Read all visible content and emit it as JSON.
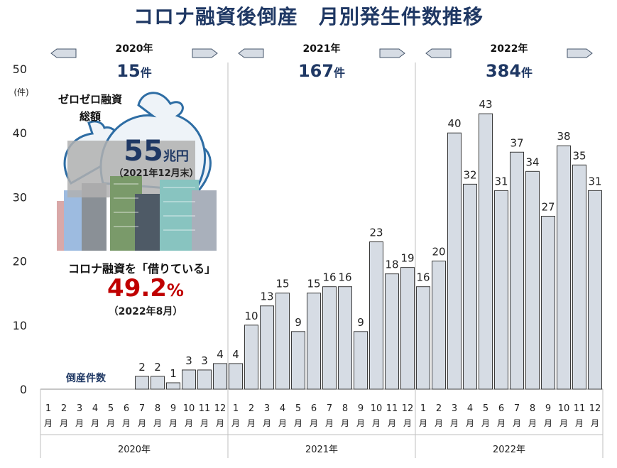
{
  "chart_data": {
    "type": "bar",
    "title": "コロナ融資後倒産　月別発生件数推移",
    "ylabel": "(件)",
    "ylim": [
      0,
      50
    ],
    "yticks": [
      0,
      10,
      20,
      30,
      40,
      50
    ],
    "grid": false,
    "series": [
      {
        "name": "倒産件数",
        "values": [
          0,
          0,
          0,
          0,
          0,
          0,
          2,
          2,
          1,
          3,
          3,
          4,
          4,
          10,
          13,
          15,
          9,
          15,
          16,
          16,
          9,
          23,
          18,
          19,
          16,
          20,
          40,
          32,
          43,
          31,
          37,
          34,
          27,
          38,
          35,
          31
        ],
        "labels_shown": [
          false,
          false,
          false,
          false,
          false,
          false,
          true,
          true,
          true,
          true,
          true,
          true,
          true,
          true,
          true,
          true,
          true,
          true,
          true,
          true,
          true,
          true,
          true,
          true,
          true,
          true,
          true,
          true,
          true,
          true,
          true,
          true,
          true,
          true,
          true,
          true
        ]
      }
    ],
    "month_labels": [
      "1",
      "2",
      "3",
      "4",
      "5",
      "6",
      "7",
      "8",
      "9",
      "10",
      "11",
      "12"
    ],
    "month_suffix": "月",
    "years": [
      {
        "label": "2020年",
        "total": "15",
        "unit": "件"
      },
      {
        "label": "2021年",
        "total": "167",
        "unit": "件"
      },
      {
        "label": "2022年",
        "total": "384",
        "unit": "件"
      }
    ],
    "colors": {
      "bar_fill": "#d6dce4",
      "bar_stroke": "#3b3b3b",
      "title": "#1f3864",
      "total": "#1f3864",
      "highlight": "#c00000",
      "arrow_fill": "#d6dce4"
    }
  },
  "annotations": {
    "zero_zero_label_1": "ゼロゼロ融資",
    "zero_zero_label_2": "総額",
    "amount_number": "55",
    "amount_unit": "兆円",
    "amount_date": "（2021年12月末）",
    "borrowing_label": "コロナ融資を「借りている」",
    "borrowing_value": "49.2",
    "borrowing_unit": "%",
    "borrowing_date": "（2022年8月）"
  }
}
